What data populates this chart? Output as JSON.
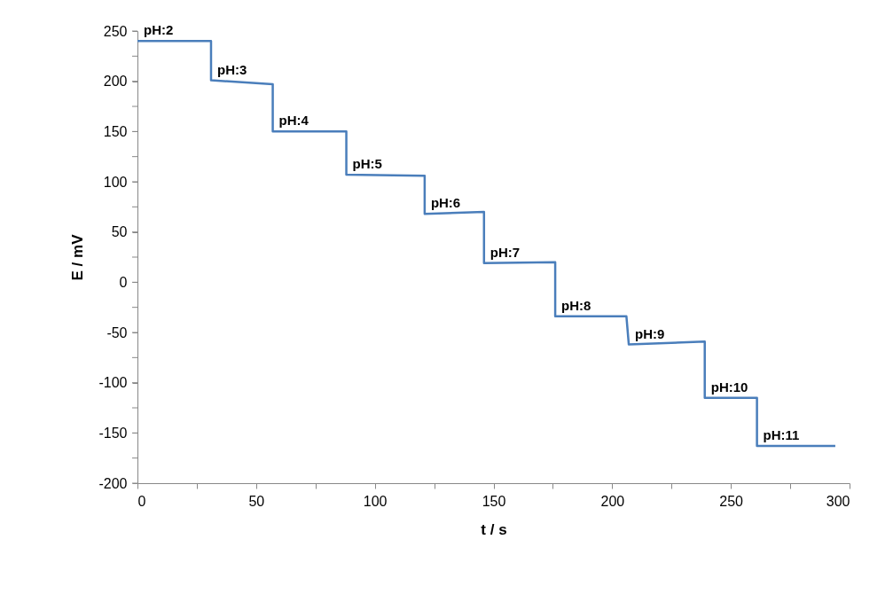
{
  "chart_data": {
    "type": "line",
    "xlabel": "t / s",
    "ylabel": "E / mV",
    "series": [
      {
        "color": "#4a7ebb",
        "x": [
          0,
          31,
          31,
          57,
          57,
          88,
          88,
          121,
          121,
          146,
          146,
          176,
          176,
          206,
          207,
          239,
          239,
          261,
          261,
          294
        ],
        "values": [
          240,
          240,
          201,
          197,
          150,
          150,
          107,
          106,
          68,
          70,
          19,
          20,
          -34,
          -34,
          -62,
          -59,
          -115,
          -115,
          -163,
          -163
        ]
      }
    ],
    "xlim": [
      0,
      300
    ],
    "xticks": [
      0,
      {
        "value": 25,
        "label": null
      },
      50,
      {
        "value": 75,
        "label": null
      },
      100,
      {
        "value": 125,
        "label": null
      },
      150,
      {
        "value": 175,
        "label": null
      },
      200,
      {
        "value": 225,
        "label": null
      },
      250,
      {
        "value": 275,
        "label": null
      },
      300
    ],
    "ylim": [
      -200,
      250
    ],
    "yticks": [
      -200,
      {
        "value": -175,
        "label": null
      },
      -150,
      {
        "value": -125,
        "label": null
      },
      -100,
      {
        "value": -75,
        "label": null
      },
      -50,
      {
        "value": -25,
        "label": null
      },
      0,
      {
        "value": 25,
        "label": null
      },
      50,
      {
        "value": 75,
        "label": null
      },
      100,
      {
        "value": 125,
        "label": null
      },
      150,
      {
        "value": 175,
        "label": null
      },
      200,
      {
        "value": 225,
        "label": null
      },
      250
    ],
    "grid": false,
    "marker": "none",
    "line_style": "solid",
    "annotations": [
      {
        "text": "pH:2",
        "x": 0,
        "y": 240
      },
      {
        "text": "pH:3",
        "x": 31,
        "y": 201
      },
      {
        "text": "pH:4",
        "x": 57,
        "y": 150
      },
      {
        "text": "pH:5",
        "x": 88,
        "y": 107
      },
      {
        "text": "pH:6",
        "x": 121,
        "y": 68
      },
      {
        "text": "pH:7",
        "x": 146,
        "y": 19
      },
      {
        "text": "pH:8",
        "x": 176,
        "y": -34
      },
      {
        "text": "pH:9",
        "x": 207,
        "y": -62
      },
      {
        "text": "pH:10",
        "x": 239,
        "y": -115
      },
      {
        "text": "pH:11",
        "x": 261,
        "y": -163
      }
    ]
  }
}
